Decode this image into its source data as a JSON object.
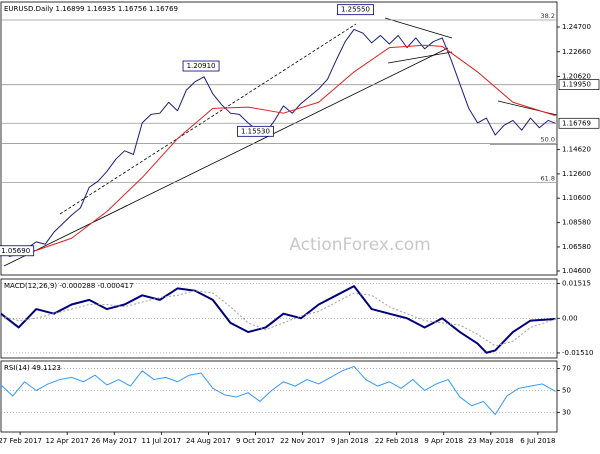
{
  "chart_data": [
    {
      "type": "line",
      "title": "EURUSD.Daily 1.16899 1.16935 1.16756 1.16769",
      "watermark": "ActionForex.com",
      "xlim": [
        0,
        378
      ],
      "ylim": [
        1.0427,
        1.2676
      ],
      "grid": false,
      "yticks": [
        {
          "value": 1.247,
          "label": "1.24700"
        },
        {
          "value": 1.2266,
          "label": "1.22660"
        },
        {
          "value": 1.2062,
          "label": "1.20620"
        },
        {
          "value": 1.1462,
          "label": "1.14620"
        },
        {
          "value": 1.126,
          "label": "1.12600"
        },
        {
          "value": 1.106,
          "label": "1.10600"
        },
        {
          "value": 1.0858,
          "label": "1.08580"
        },
        {
          "value": 1.0658,
          "label": "1.06580"
        },
        {
          "value": 1.046,
          "label": "1.04600"
        }
      ],
      "series": [
        {
          "name": "EURUSD",
          "color": "#1c1c80",
          "width": 1,
          "x": [
            0,
            6,
            12,
            18,
            24,
            30,
            36,
            42,
            48,
            54,
            60,
            66,
            72,
            78,
            84,
            90,
            96,
            102,
            108,
            114,
            120,
            126,
            132,
            138,
            144,
            150,
            156,
            162,
            168,
            174,
            180,
            186,
            192,
            198,
            204,
            210,
            216,
            222,
            228,
            234,
            240,
            246,
            252,
            258,
            264,
            270,
            276,
            282,
            288,
            294,
            300,
            306,
            312,
            318,
            324,
            330,
            336,
            342,
            348,
            354,
            360,
            366,
            372,
            377
          ],
          "values": [
            1.062,
            1.058,
            1.06,
            1.065,
            1.07,
            1.068,
            1.078,
            1.085,
            1.092,
            1.098,
            1.115,
            1.12,
            1.128,
            1.138,
            1.145,
            1.142,
            1.168,
            1.175,
            1.176,
            1.185,
            1.178,
            1.195,
            1.202,
            1.206,
            1.192,
            1.183,
            1.176,
            1.175,
            1.168,
            1.162,
            1.16,
            1.17,
            1.182,
            1.176,
            1.184,
            1.19,
            1.196,
            1.204,
            1.22,
            1.235,
            1.245,
            1.242,
            1.234,
            1.24,
            1.233,
            1.24,
            1.23,
            1.238,
            1.229,
            1.235,
            1.238,
            1.22,
            1.2,
            1.18,
            1.168,
            1.172,
            1.158,
            1.166,
            1.17,
            1.162,
            1.172,
            1.164,
            1.17,
            1.16769
          ]
        },
        {
          "name": "MA",
          "color": "#e02020",
          "width": 1,
          "x": [
            0,
            24,
            48,
            72,
            96,
            120,
            144,
            168,
            192,
            216,
            240,
            264,
            288,
            300,
            324,
            348,
            377
          ],
          "values": [
            1.062,
            1.063,
            1.073,
            1.095,
            1.123,
            1.155,
            1.18,
            1.181,
            1.176,
            1.185,
            1.21,
            1.23,
            1.232,
            1.231,
            1.21,
            1.185,
            1.174
          ]
        }
      ],
      "levels": [
        {
          "value": 1.2528,
          "label": "38.2"
        },
        {
          "value": 1.151,
          "label": "50.0"
        },
        {
          "value": 1.119,
          "label": "61.8"
        }
      ],
      "price_labels": [
        {
          "value": 1.1995,
          "label": "1.19950"
        },
        {
          "value": 1.16769,
          "label": "1.16769"
        }
      ],
      "annotations": [
        {
          "x": 241,
          "value": 1.2555,
          "label": "1.25550"
        },
        {
          "x": 136,
          "value": 1.2091,
          "label": "1.20910"
        },
        {
          "x": 173,
          "value": 1.1553,
          "label": "1.15530"
        },
        {
          "x": 10,
          "value": 1.0569,
          "label": "1.05690"
        }
      ]
    },
    {
      "type": "line",
      "title": "MACD(12,26,9) -0.000288 -0.000417",
      "xlim": [
        0,
        378
      ],
      "ylim": [
        -0.0173,
        0.0171
      ],
      "grid": true,
      "yticks": [
        0.01515,
        {
          "value": 0,
          "label": "0.00"
        },
        {
          "value": -0.0151,
          "label": "-0.01510"
        }
      ],
      "series": [
        {
          "name": "MACD",
          "color": "#00007f",
          "width": 2,
          "x": [
            0,
            12,
            24,
            36,
            48,
            60,
            72,
            84,
            96,
            108,
            120,
            132,
            144,
            156,
            168,
            180,
            192,
            204,
            216,
            228,
            240,
            252,
            264,
            276,
            288,
            300,
            312,
            324,
            330,
            336,
            348,
            360,
            377
          ],
          "values": [
            0.002,
            -0.004,
            0.004,
            0.002,
            0.006,
            0.008,
            0.004,
            0.006,
            0.01,
            0.008,
            0.013,
            0.012,
            0.008,
            -0.002,
            -0.006,
            -0.004,
            0.002,
            0.0,
            0.006,
            0.01,
            0.014,
            0.004,
            0.002,
            0.0,
            -0.004,
            0.0,
            -0.006,
            -0.011,
            -0.015,
            -0.014,
            -0.006,
            -0.001,
            -0.0003
          ]
        },
        {
          "name": "Signal",
          "color": "#a0a0a0",
          "width": 1,
          "dash": true,
          "x": [
            0,
            12,
            24,
            36,
            48,
            60,
            72,
            84,
            96,
            108,
            120,
            132,
            144,
            156,
            168,
            180,
            192,
            204,
            216,
            228,
            240,
            252,
            264,
            276,
            288,
            300,
            312,
            324,
            336,
            348,
            360,
            377
          ],
          "values": [
            0.001,
            -0.001,
            0.0,
            0.002,
            0.004,
            0.006,
            0.006,
            0.005,
            0.007,
            0.009,
            0.01,
            0.012,
            0.011,
            0.005,
            -0.002,
            -0.005,
            -0.002,
            0.001,
            0.003,
            0.007,
            0.011,
            0.01,
            0.005,
            0.002,
            -0.001,
            -0.002,
            -0.003,
            -0.007,
            -0.012,
            -0.01,
            -0.004,
            -0.0004
          ]
        }
      ]
    },
    {
      "type": "line",
      "title": "RSI(14) 49.1123",
      "xlim": [
        0,
        378
      ],
      "ylim": [
        12,
        77
      ],
      "grid": true,
      "yticks": [
        70,
        50,
        30
      ],
      "xticks": [
        {
          "value": 13,
          "label": "27 Feb 2017"
        },
        {
          "value": 45,
          "label": "12 Apr 2017"
        },
        {
          "value": 77,
          "label": "26 May 2017"
        },
        {
          "value": 109,
          "label": "11 Jul 2017"
        },
        {
          "value": 141,
          "label": "24 Aug 2017"
        },
        {
          "value": 173,
          "label": "9 Oct 2017"
        },
        {
          "value": 205,
          "label": "22 Nov 2017"
        },
        {
          "value": 237,
          "label": "9 Jan 2018"
        },
        {
          "value": 269,
          "label": "22 Feb 2018"
        },
        {
          "value": 301,
          "label": "9 Apr 2018"
        },
        {
          "value": 333,
          "label": "23 May 2018"
        },
        {
          "value": 365,
          "label": "6 Jul 2018"
        }
      ],
      "series": [
        {
          "name": "RSI",
          "color": "#3399ff",
          "width": 1,
          "x": [
            0,
            8,
            16,
            24,
            32,
            40,
            48,
            56,
            64,
            72,
            80,
            88,
            96,
            104,
            112,
            120,
            128,
            136,
            144,
            152,
            160,
            168,
            176,
            184,
            192,
            200,
            208,
            216,
            224,
            232,
            240,
            248,
            256,
            264,
            272,
            280,
            288,
            296,
            304,
            312,
            320,
            328,
            336,
            344,
            352,
            360,
            368,
            377
          ],
          "values": [
            55,
            45,
            58,
            50,
            56,
            60,
            62,
            58,
            64,
            55,
            60,
            54,
            68,
            60,
            62,
            58,
            64,
            66,
            52,
            46,
            44,
            48,
            40,
            50,
            58,
            54,
            60,
            56,
            62,
            68,
            72,
            60,
            54,
            58,
            52,
            60,
            50,
            56,
            60,
            44,
            36,
            40,
            28,
            45,
            52,
            54,
            56,
            49.1123
          ]
        }
      ]
    }
  ]
}
